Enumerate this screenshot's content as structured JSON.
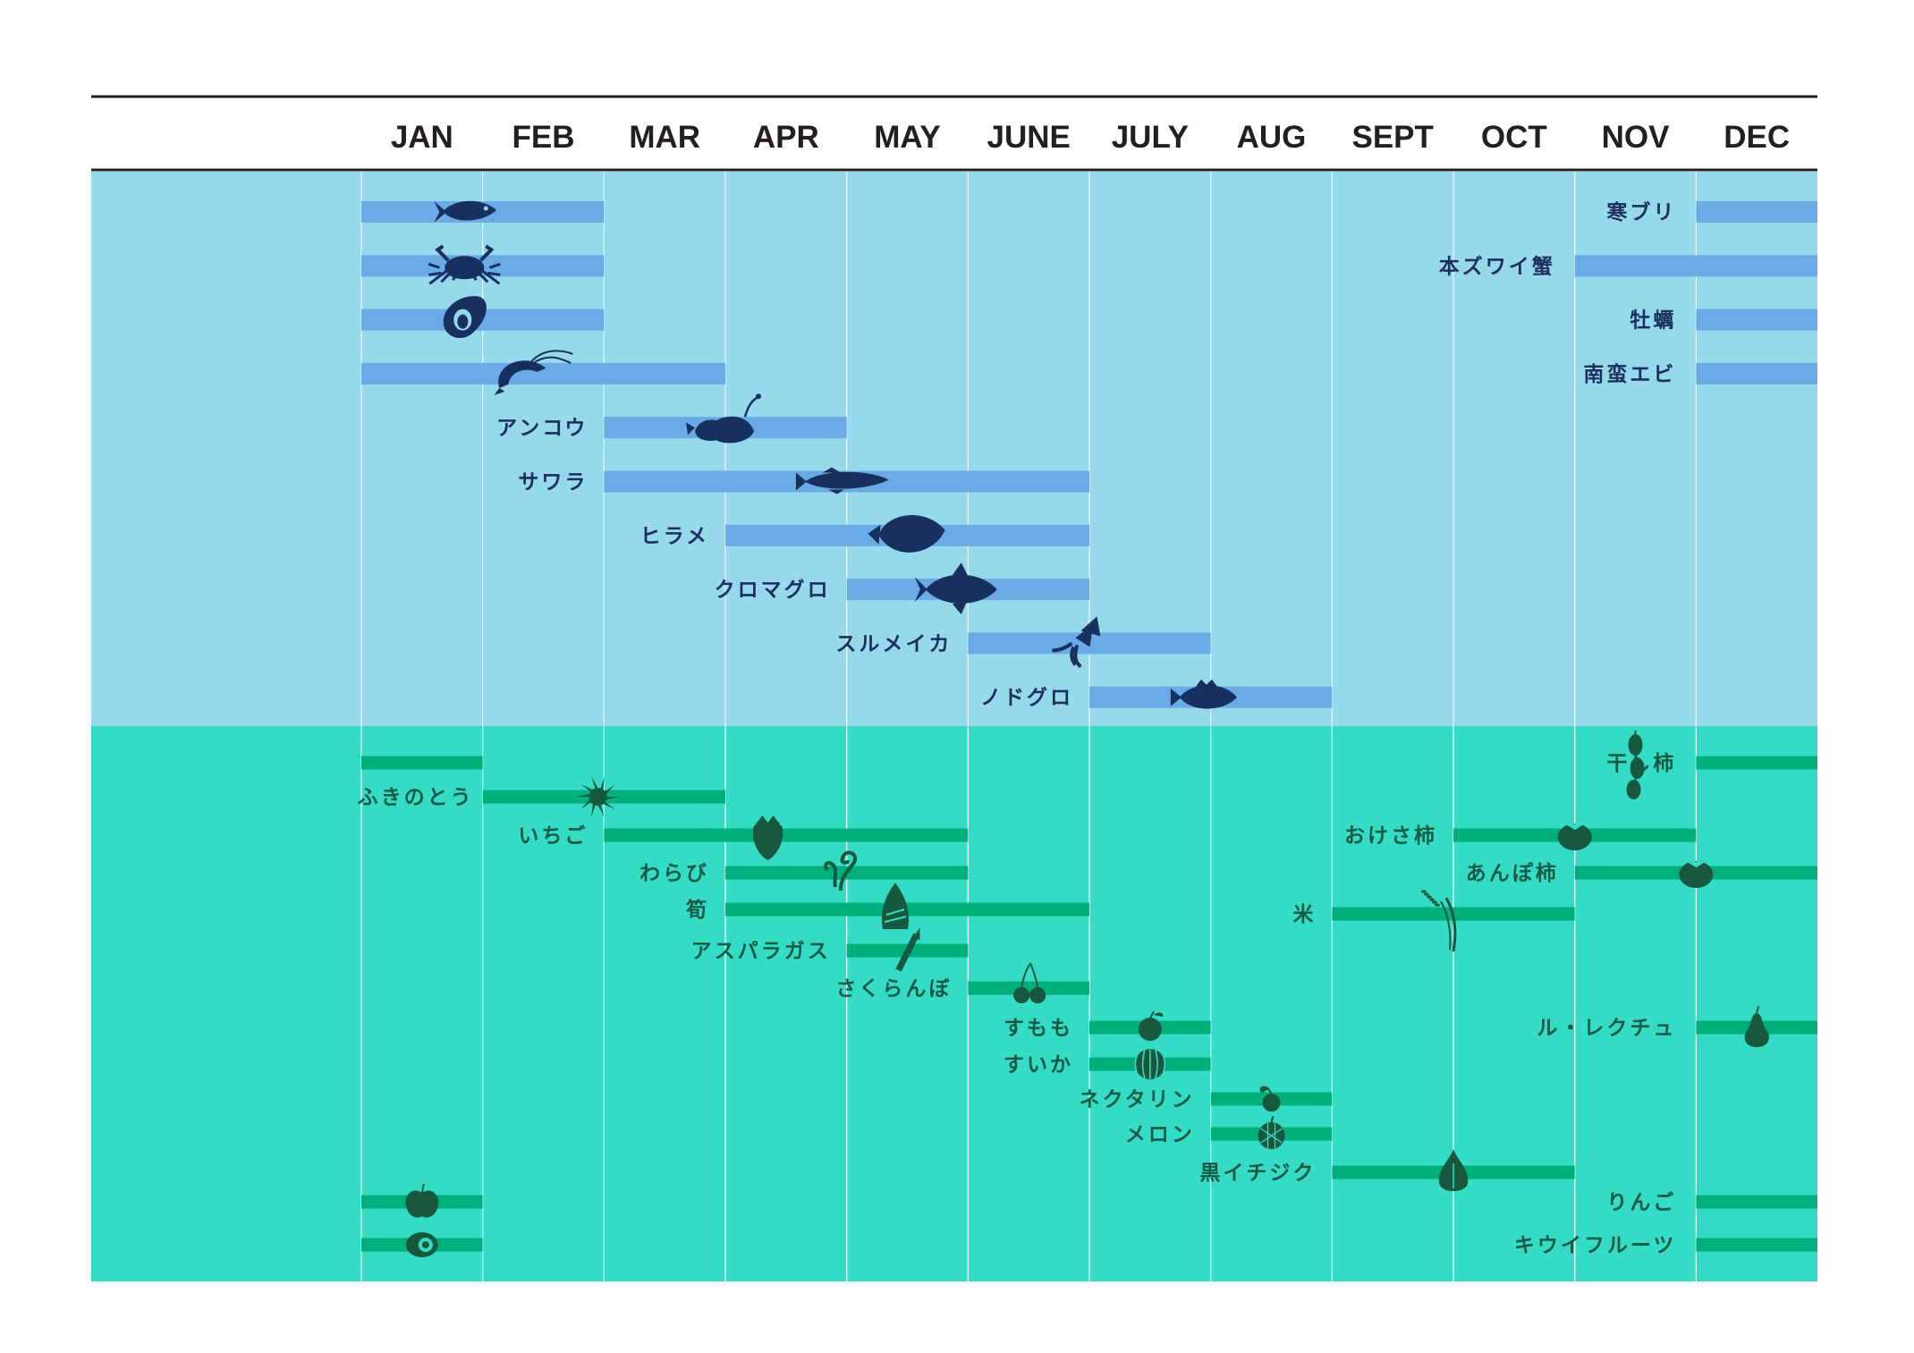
{
  "chart_data": {
    "type": "gantt",
    "title": "",
    "xlabel": "",
    "ylabel": "",
    "months": [
      "JAN",
      "FEB",
      "MAR",
      "APR",
      "MAY",
      "JUNE",
      "JULY",
      "AUG",
      "SEPT",
      "OCT",
      "NOV",
      "DEC"
    ],
    "colors": {
      "sea_bg": "#96d9ea",
      "land_bg": "#35dcc5",
      "sea_bar": "#6aaae6",
      "land_bar": "#00b07a",
      "sea_icon": "#17305f",
      "land_icon": "#17583f",
      "grid": "#e6f6fb"
    },
    "seafood": [
      {
        "label": "寒ブリ",
        "icon": "fish-icon",
        "periods": [
          [
            12,
            12
          ],
          [
            1,
            2
          ]
        ],
        "label_pos": "right",
        "icon_at": 1.85
      },
      {
        "label": "本ズワイ蟹",
        "icon": "crab-icon",
        "periods": [
          [
            11,
            12
          ],
          [
            1,
            2
          ]
        ],
        "label_pos": "right",
        "icon_at": 1.85
      },
      {
        "label": "牡蠣",
        "icon": "oyster-icon",
        "periods": [
          [
            12,
            12
          ],
          [
            1,
            2
          ]
        ],
        "label_pos": "right",
        "icon_at": 1.85
      },
      {
        "label": "南蛮エビ",
        "icon": "shrimp-icon",
        "periods": [
          [
            12,
            12
          ],
          [
            1,
            3
          ]
        ],
        "label_pos": "right",
        "icon_at": 2.3
      },
      {
        "label": "アンコウ",
        "icon": "anglerfish-icon",
        "periods": [
          [
            3,
            4
          ]
        ],
        "label_pos": "left",
        "icon_at": 4.0
      },
      {
        "label": "サワラ",
        "icon": "mackerel-icon",
        "periods": [
          [
            3,
            6
          ]
        ],
        "label_pos": "left",
        "icon_at": 4.95
      },
      {
        "label": "ヒラメ",
        "icon": "flounder-icon",
        "periods": [
          [
            4,
            6
          ]
        ],
        "label_pos": "left",
        "icon_at": 5.5
      },
      {
        "label": "クロマグロ",
        "icon": "tuna-icon",
        "periods": [
          [
            5,
            6
          ]
        ],
        "label_pos": "left",
        "icon_at": 5.9
      },
      {
        "label": "スルメイカ",
        "icon": "squid-icon",
        "periods": [
          [
            6,
            7
          ]
        ],
        "label_pos": "left",
        "icon_at": 6.9
      },
      {
        "label": "ノドグロ",
        "icon": "rockfish-icon",
        "periods": [
          [
            7,
            8
          ]
        ],
        "label_pos": "left",
        "icon_at": 7.95
      }
    ],
    "produce": [
      {
        "label": "干し柿",
        "icon": "dried-persimmon-icon",
        "periods": [
          [
            12,
            12
          ],
          [
            1,
            1
          ]
        ],
        "label_pos": "right",
        "icon_at": 11.5
      },
      {
        "label": "ふきのとう",
        "icon": "butterbur-icon",
        "periods": [
          [
            2,
            3
          ]
        ],
        "label_pos": "left",
        "icon_at": 2.95
      },
      {
        "label": "いちご",
        "icon": "strawberry-icon",
        "periods": [
          [
            3,
            5
          ]
        ],
        "label_pos": "left",
        "icon_at": 4.35
      },
      {
        "label": "わらび",
        "icon": "bracken-icon",
        "periods": [
          [
            4,
            5
          ]
        ],
        "label_pos": "left",
        "icon_at": 4.95
      },
      {
        "label": "筍",
        "icon": "bamboo-shoot-icon",
        "periods": [
          [
            4,
            6
          ]
        ],
        "label_pos": "left",
        "icon_at": 5.4
      },
      {
        "label": "アスパラガス",
        "icon": "asparagus-icon",
        "periods": [
          [
            5,
            5
          ]
        ],
        "label_pos": "left",
        "icon_at": 5.5
      },
      {
        "label": "さくらんぼ",
        "icon": "cherry-icon",
        "periods": [
          [
            6,
            6
          ]
        ],
        "label_pos": "left",
        "icon_at": 6.5
      },
      {
        "label": "すもも",
        "icon": "plum-icon",
        "periods": [
          [
            7,
            7
          ]
        ],
        "label_pos": "left",
        "icon_at": 7.5
      },
      {
        "label": "すいか",
        "icon": "watermelon-icon",
        "periods": [
          [
            7,
            7
          ]
        ],
        "label_pos": "left",
        "icon_at": 7.5
      },
      {
        "label": "ネクタリン",
        "icon": "nectarine-icon",
        "periods": [
          [
            8,
            8
          ]
        ],
        "label_pos": "left",
        "icon_at": 8.5
      },
      {
        "label": "メロン",
        "icon": "melon-icon",
        "periods": [
          [
            8,
            8
          ]
        ],
        "label_pos": "left",
        "icon_at": 8.5
      },
      {
        "label": "黒イチジク",
        "icon": "fig-icon",
        "periods": [
          [
            9,
            10
          ]
        ],
        "label_pos": "left",
        "icon_at": 10.0
      },
      {
        "label": "おけさ柿",
        "icon": "persimmon-icon",
        "periods": [
          [
            10,
            11
          ]
        ],
        "label_pos": "left",
        "icon_at": 11.0
      },
      {
        "label": "あんぽ柿",
        "icon": "persimmon-icon",
        "periods": [
          [
            11,
            12
          ]
        ],
        "label_pos": "left",
        "icon_at": 12.0
      },
      {
        "label": "米",
        "icon": "rice-icon",
        "periods": [
          [
            9,
            10
          ]
        ],
        "label_pos": "left",
        "icon_at": 9.97
      },
      {
        "label": "ル・レクチュ",
        "icon": "pear-icon",
        "periods": [
          [
            12,
            12
          ]
        ],
        "label_pos": "right",
        "icon_at": 12.5
      },
      {
        "label": "りんご",
        "icon": "apple-icon",
        "periods": [
          [
            12,
            12
          ],
          [
            1,
            1
          ]
        ],
        "label_pos": "right",
        "icon_at": 1.5
      },
      {
        "label": "キウイフルーツ",
        "icon": "kiwi-icon",
        "periods": [
          [
            12,
            12
          ],
          [
            1,
            1
          ]
        ],
        "label_pos": "right",
        "icon_at": 1.5
      }
    ]
  }
}
